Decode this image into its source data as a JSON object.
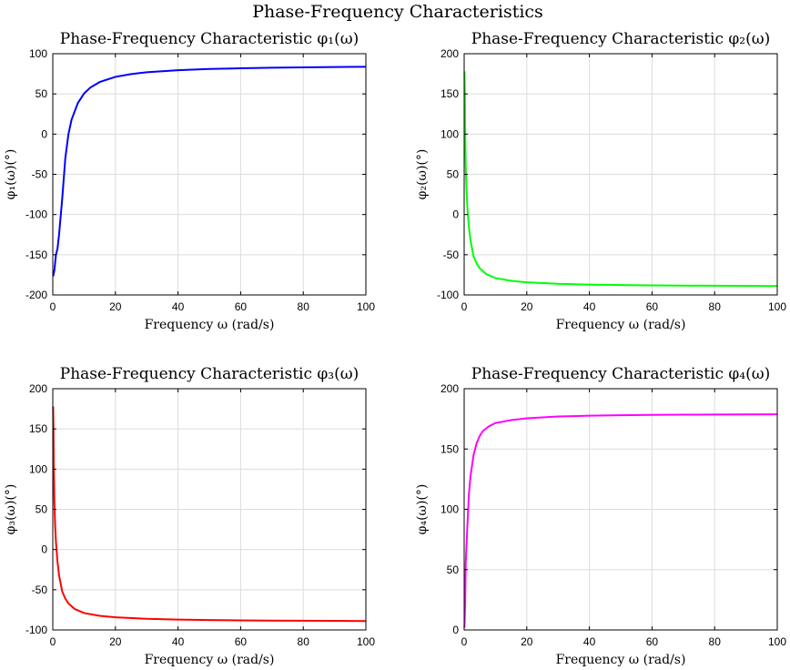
{
  "figure": {
    "title": "Phase-Frequency Characteristics"
  },
  "chart_data": [
    {
      "type": "line",
      "title": "Phase-Frequency Characteristic φ₁(ω)",
      "xlabel": "Frequency ω (rad/s)",
      "ylabel": "φ₁(ω)(°)",
      "xlim": [
        0,
        100
      ],
      "ylim": [
        -200,
        100
      ],
      "xticks": [
        0,
        20,
        40,
        60,
        80,
        100
      ],
      "yticks": [
        -200,
        -150,
        -100,
        -50,
        0,
        50,
        100
      ],
      "grid": true,
      "color": "#0000ff",
      "x": [
        0.1,
        0.5,
        1,
        1.5,
        2,
        3,
        4,
        5,
        6,
        8,
        10,
        12,
        15,
        20,
        25,
        30,
        40,
        50,
        60,
        70,
        80,
        90,
        100
      ],
      "y": [
        -176.8,
        -169.7,
        -150.3,
        -142.7,
        -125.0,
        -81.0,
        -30.0,
        0.0,
        18.0,
        38.7,
        50.6,
        57.9,
        64.8,
        71.2,
        74.7,
        76.9,
        79.5,
        81.0,
        81.9,
        82.6,
        83.0,
        83.4,
        83.7
      ]
    },
    {
      "type": "line",
      "title": "Phase-Frequency Characteristic φ₂(ω)",
      "xlabel": "Frequency ω (rad/s)",
      "ylabel": "φ₂(ω)(°)",
      "xlim": [
        0,
        100
      ],
      "ylim": [
        -100,
        200
      ],
      "xticks": [
        0,
        20,
        40,
        60,
        80,
        100
      ],
      "yticks": [
        -100,
        -50,
        0,
        50,
        100,
        150,
        200
      ],
      "grid": true,
      "color": "#00ff00",
      "x": [
        0.1,
        0.2,
        0.3,
        0.5,
        0.75,
        1,
        1.5,
        2,
        3,
        4,
        5,
        7,
        10,
        15,
        20,
        30,
        40,
        50,
        60,
        70,
        80,
        90,
        100
      ],
      "y": [
        178.0,
        155.0,
        110.0,
        60.0,
        30.0,
        10.0,
        -15.0,
        -32.0,
        -52.0,
        -61.0,
        -67.0,
        -74.0,
        -79.0,
        -82.5,
        -84.3,
        -86.2,
        -87.1,
        -87.7,
        -88.1,
        -88.4,
        -88.6,
        -88.7,
        -88.9
      ]
    },
    {
      "type": "line",
      "title": "Phase-Frequency Characteristic φ₃(ω)",
      "xlabel": "Frequency ω (rad/s)",
      "ylabel": "φ₃(ω)(°)",
      "xlim": [
        0,
        100
      ],
      "ylim": [
        -100,
        200
      ],
      "xticks": [
        0,
        20,
        40,
        60,
        80,
        100
      ],
      "yticks": [
        -100,
        -50,
        0,
        50,
        100,
        150,
        200
      ],
      "grid": true,
      "color": "#ff0000",
      "x": [
        0.1,
        0.2,
        0.3,
        0.5,
        0.75,
        1,
        1.5,
        2,
        3,
        4,
        5,
        7,
        10,
        15,
        20,
        30,
        40,
        50,
        60,
        70,
        80,
        90,
        100
      ],
      "y": [
        178.0,
        155.0,
        110.0,
        60.0,
        30.0,
        10.0,
        -15.0,
        -32.0,
        -52.0,
        -61.0,
        -67.0,
        -74.0,
        -79.0,
        -82.5,
        -84.3,
        -86.2,
        -87.1,
        -87.7,
        -88.1,
        -88.4,
        -88.6,
        -88.7,
        -88.9
      ]
    },
    {
      "type": "line",
      "title": "Phase-Frequency Characteristic φ₄(ω)",
      "xlabel": "Frequency ω (rad/s)",
      "ylabel": "φ₄(ω)(°)",
      "xlim": [
        0,
        100
      ],
      "ylim": [
        0,
        200
      ],
      "xticks": [
        0,
        20,
        40,
        60,
        80,
        100
      ],
      "yticks": [
        0,
        50,
        100,
        150,
        200
      ],
      "grid": true,
      "color": "#ff00ff",
      "x": [
        0.1,
        0.3,
        0.5,
        0.75,
        1,
        1.5,
        2,
        3,
        4,
        5,
        6,
        8,
        10,
        15,
        20,
        30,
        40,
        50,
        60,
        70,
        80,
        90,
        100
      ],
      "y": [
        2.0,
        20.0,
        55.0,
        70.0,
        85.0,
        112.0,
        127.0,
        145.0,
        155.0,
        161.0,
        165.0,
        169.0,
        171.5,
        174.0,
        175.5,
        177.0,
        177.6,
        178.0,
        178.3,
        178.5,
        178.6,
        178.7,
        178.8
      ]
    }
  ]
}
